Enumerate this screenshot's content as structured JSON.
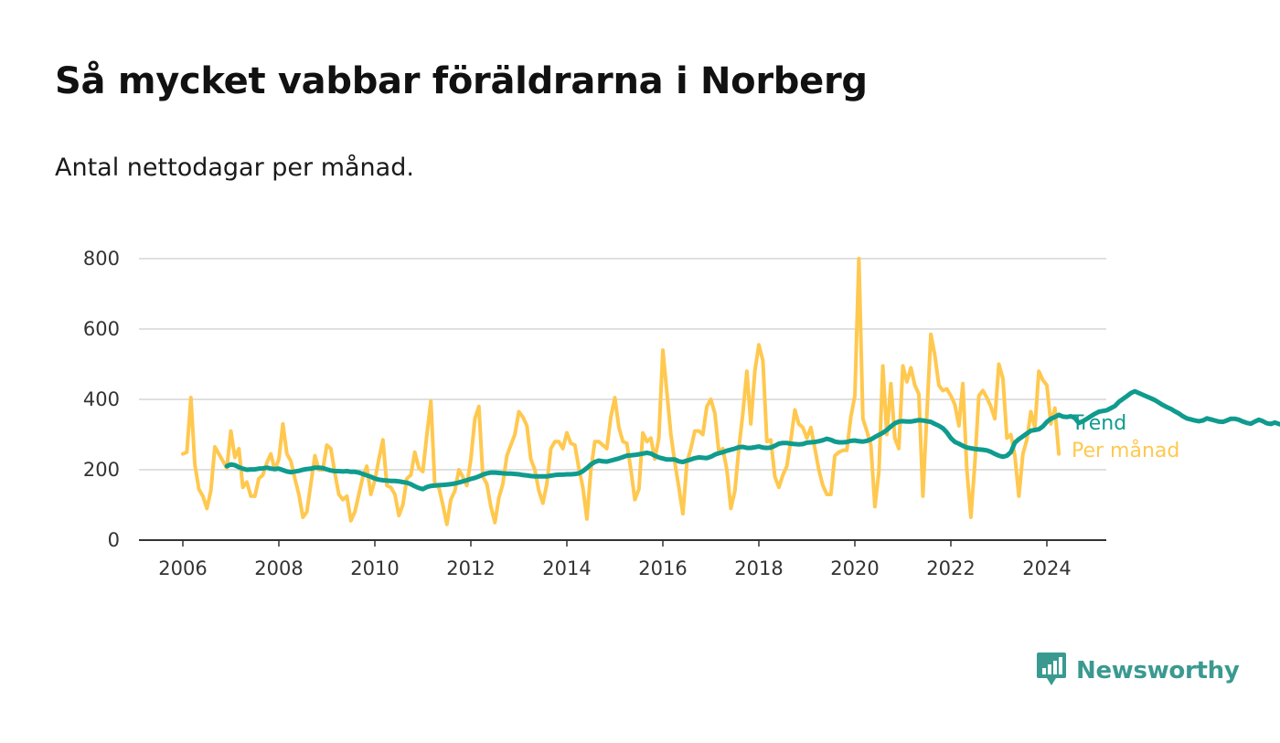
{
  "header": {
    "title": "Så mycket vabbar föräldrarna i Norberg",
    "subtitle": "Antal nettodagar per månad."
  },
  "brand": {
    "name": "Newsworthy",
    "icon": "newsworthy-logo-icon",
    "color": "#3a9a90"
  },
  "chart_data": {
    "type": "line",
    "x_ticks": [
      "2006",
      "2008",
      "2010",
      "2012",
      "2014",
      "2016",
      "2018",
      "2020",
      "2022",
      "2024"
    ],
    "y_ticks": [
      "0",
      "200",
      "400",
      "600",
      "800"
    ],
    "ylim": [
      0,
      800
    ],
    "grid": true,
    "series": [
      {
        "name": "Per månad",
        "color": "#ffc84f",
        "x_start": "2006-01",
        "values": [
          245,
          250,
          405,
          215,
          145,
          125,
          90,
          140,
          265,
          245,
          225,
          205,
          310,
          235,
          260,
          150,
          165,
          125,
          125,
          175,
          185,
          220,
          245,
          200,
          230,
          330,
          245,
          225,
          175,
          130,
          65,
          80,
          160,
          240,
          200,
          200,
          270,
          260,
          190,
          130,
          115,
          125,
          55,
          80,
          130,
          180,
          210,
          130,
          170,
          230,
          285,
          155,
          150,
          130,
          70,
          100,
          175,
          185,
          250,
          205,
          195,
          300,
          395,
          155,
          150,
          100,
          45,
          115,
          140,
          200,
          180,
          155,
          230,
          345,
          380,
          180,
          160,
          95,
          50,
          120,
          160,
          240,
          270,
          300,
          365,
          350,
          325,
          230,
          200,
          140,
          105,
          160,
          260,
          280,
          280,
          260,
          305,
          275,
          270,
          205,
          150,
          60,
          200,
          280,
          280,
          270,
          260,
          350,
          405,
          320,
          280,
          275,
          200,
          115,
          145,
          305,
          280,
          290,
          230,
          290,
          540,
          420,
          300,
          220,
          150,
          75,
          220,
          260,
          310,
          310,
          300,
          380,
          400,
          360,
          250,
          260,
          200,
          90,
          140,
          260,
          360,
          480,
          330,
          480,
          555,
          510,
          280,
          285,
          180,
          150,
          185,
          210,
          285,
          370,
          330,
          320,
          290,
          320,
          260,
          200,
          155,
          130,
          130,
          240,
          250,
          255,
          255,
          350,
          410,
          800,
          345,
          310,
          270,
          95,
          195,
          495,
          300,
          445,
          290,
          260,
          495,
          450,
          490,
          440,
          415,
          125,
          360,
          585,
          525,
          440,
          425,
          430,
          410,
          385,
          325,
          445,
          200,
          65,
          220,
          410,
          425,
          405,
          380,
          345,
          500,
          460,
          290,
          300,
          240,
          125,
          245,
          285,
          365,
          320,
          480,
          455,
          440,
          330,
          375,
          245
        ]
      },
      {
        "name": "Trend",
        "color": "#0f9b8e",
        "x_start": "2006-12",
        "values": [
          210,
          215,
          213,
          207,
          203,
          200,
          201,
          201,
          203,
          204,
          206,
          203,
          202,
          203,
          199,
          195,
          193,
          195,
          197,
          200,
          202,
          203,
          206,
          206,
          205,
          201,
          198,
          196,
          196,
          195,
          196,
          194,
          194,
          192,
          188,
          184,
          180,
          175,
          172,
          170,
          169,
          168,
          168,
          167,
          165,
          163,
          159,
          153,
          148,
          145,
          151,
          154,
          155,
          156,
          157,
          158,
          159,
          161,
          164,
          167,
          170,
          174,
          177,
          181,
          186,
          190,
          192,
          192,
          191,
          190,
          189,
          189,
          188,
          187,
          185,
          184,
          182,
          181,
          181,
          181,
          181,
          183,
          185,
          186,
          186,
          187,
          187,
          188,
          190,
          196,
          205,
          215,
          222,
          226,
          224,
          223,
          226,
          229,
          232,
          236,
          240,
          241,
          242,
          244,
          246,
          248,
          246,
          240,
          235,
          232,
          229,
          229,
          229,
          224,
          222,
          226,
          229,
          233,
          235,
          234,
          233,
          237,
          243,
          247,
          250,
          254,
          257,
          260,
          264,
          265,
          262,
          262,
          264,
          266,
          263,
          262,
          263,
          268,
          274,
          276,
          276,
          274,
          273,
          272,
          273,
          277,
          278,
          279,
          281,
          284,
          288,
          285,
          280,
          278,
          278,
          279,
          282,
          283,
          281,
          280,
          282,
          286,
          293,
          299,
          305,
          313,
          323,
          332,
          337,
          338,
          337,
          337,
          339,
          341,
          340,
          338,
          336,
          330,
          325,
          318,
          306,
          290,
          279,
          274,
          268,
          263,
          261,
          259,
          258,
          257,
          255,
          251,
          245,
          240,
          237,
          240,
          250,
          277,
          287,
          295,
          303,
          311,
          313,
          315,
          323,
          336,
          345,
          350,
          356,
          351,
          350,
          352,
          347,
          333,
          338,
          345,
          352,
          359,
          365,
          367,
          369,
          375,
          381,
          393,
          401,
          409,
          418,
          423,
          418,
          413,
          408,
          403,
          398,
          391,
          384,
          378,
          373,
          366,
          360,
          352,
          346,
          343,
          340,
          338,
          340,
          346,
          343,
          340,
          337,
          336,
          340,
          345,
          345,
          342,
          337,
          333,
          331,
          337,
          342,
          338,
          332,
          330,
          334,
          330,
          327
        ]
      }
    ]
  }
}
